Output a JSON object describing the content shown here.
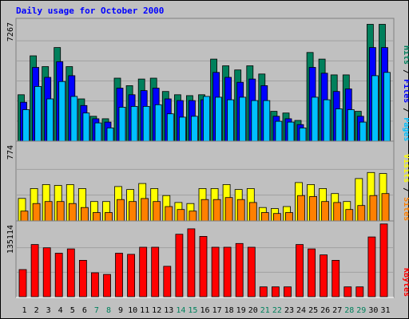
{
  "title": "Daily usage for October 2000",
  "colors": {
    "background": "#c0c0c0",
    "panel": "#c0c0c0",
    "grid": "#a0a0a0",
    "title": "#0000ff",
    "hits": "#00805c",
    "files": "#0000ff",
    "pages": "#00c0ff",
    "visits": "#ffff00",
    "sites": "#ff8000",
    "kbytes": "#ff0000",
    "weekday": "#000000",
    "weekend": "#00805c"
  },
  "chart_data": [
    {
      "type": "bar",
      "panel": "hits-files-pages",
      "max_label": "7267",
      "ylim": [
        0,
        7267
      ],
      "legend": [
        {
          "name": "Pages",
          "color": "#00c0ff"
        },
        {
          "name": "Files",
          "color": "#0000ff"
        },
        {
          "name": "Hits",
          "color": "#00805c"
        }
      ],
      "separator": "/",
      "series": [
        {
          "name": "Hits",
          "values": [
            2800,
            5150,
            4500,
            5650,
            4500,
            2550,
            1500,
            1350,
            3800,
            3350,
            3750,
            3800,
            3000,
            2800,
            2750,
            2800,
            4950,
            4550,
            4300,
            4550,
            4050,
            1800,
            1700,
            1250,
            5350,
            4950,
            4000,
            4000,
            1800,
            7050,
            7050
          ]
        },
        {
          "name": "Files",
          "values": [
            2350,
            4450,
            3850,
            4800,
            3950,
            2150,
            1350,
            1150,
            3200,
            2800,
            3050,
            3200,
            2550,
            2450,
            2450,
            2500,
            4150,
            3850,
            3550,
            3750,
            3350,
            1500,
            1350,
            1000,
            4450,
            4100,
            3000,
            3150,
            1500,
            5650,
            5650
          ]
        },
        {
          "name": "Pages",
          "values": [
            1900,
            3300,
            2550,
            3600,
            2700,
            1700,
            1100,
            800,
            2050,
            2100,
            2100,
            2200,
            1650,
            1450,
            1500,
            2700,
            2650,
            2500,
            2650,
            2450,
            2450,
            1200,
            1150,
            800,
            2650,
            2500,
            1950,
            1900,
            1150,
            3950,
            4150
          ]
        }
      ]
    },
    {
      "type": "bar",
      "panel": "visits-sites",
      "max_label": "774",
      "ylim": [
        0,
        774
      ],
      "legend": [
        {
          "name": "Sites",
          "color": "#ff8000"
        },
        {
          "name": "Visits",
          "color": "#ffff00"
        }
      ],
      "separator": "/",
      "series": [
        {
          "name": "Visits",
          "values": [
            225,
            324,
            364,
            355,
            364,
            324,
            194,
            194,
            344,
            314,
            374,
            324,
            254,
            184,
            174,
            324,
            324,
            364,
            314,
            324,
            134,
            124,
            144,
            384,
            364,
            324,
            274,
            194,
            424,
            484,
            474
          ]
        },
        {
          "name": "Sites",
          "values": [
            98,
            174,
            194,
            194,
            174,
            134,
            84,
            84,
            214,
            194,
            224,
            194,
            144,
            114,
            98,
            214,
            214,
            234,
            214,
            184,
            84,
            74,
            84,
            254,
            244,
            194,
            184,
            114,
            154,
            254,
            274
          ]
        }
      ]
    },
    {
      "type": "bar",
      "panel": "kbytes",
      "max_label": "135114",
      "ylim": [
        0,
        135114
      ],
      "legend": [
        {
          "name": "KBytes",
          "color": "#ff0000"
        }
      ],
      "series": [
        {
          "name": "KBytes",
          "values": [
            50000,
            96000,
            90000,
            80000,
            88000,
            67000,
            44000,
            41000,
            80000,
            78000,
            91000,
            91000,
            56000,
            115000,
            125000,
            111000,
            91000,
            91000,
            98000,
            91000,
            18000,
            18000,
            18000,
            96000,
            88000,
            77000,
            67000,
            18000,
            18000,
            110000,
            134000
          ]
        }
      ]
    }
  ],
  "x_axis": {
    "days": [
      "1",
      "2",
      "3",
      "4",
      "5",
      "6",
      "7",
      "8",
      "9",
      "10",
      "11",
      "12",
      "13",
      "14",
      "15",
      "16",
      "17",
      "18",
      "19",
      "20",
      "21",
      "22",
      "23",
      "24",
      "25",
      "26",
      "27",
      "28",
      "29",
      "30",
      "31"
    ],
    "weekend": [
      false,
      false,
      false,
      false,
      false,
      false,
      true,
      true,
      false,
      false,
      false,
      false,
      false,
      true,
      true,
      false,
      false,
      false,
      false,
      false,
      true,
      true,
      false,
      false,
      false,
      false,
      false,
      true,
      true,
      false,
      false
    ]
  }
}
